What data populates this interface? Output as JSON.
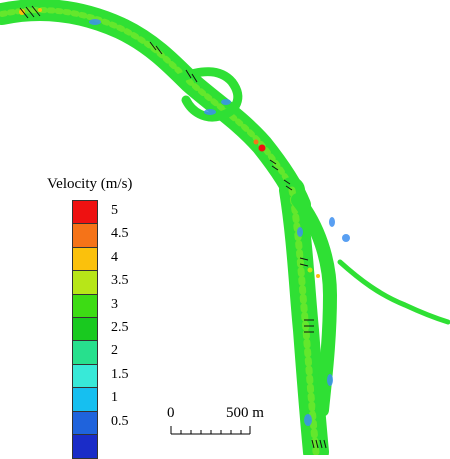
{
  "legend": {
    "title": "Velocity (m/s)",
    "classes": [
      {
        "label": "5",
        "color": "#ee1111"
      },
      {
        "label": "4.5",
        "color": "#f57318"
      },
      {
        "label": "4",
        "color": "#fbc10c"
      },
      {
        "label": "3.5",
        "color": "#b7e618"
      },
      {
        "label": "3",
        "color": "#3ddc14"
      },
      {
        "label": "2.5",
        "color": "#19c91f"
      },
      {
        "label": "2",
        "color": "#27e08d"
      },
      {
        "label": "1.5",
        "color": "#38e9d8"
      },
      {
        "label": "1",
        "color": "#16bff0"
      },
      {
        "label": "0.5",
        "color": "#1f63dc"
      },
      {
        "label": "",
        "color": "#1a2cc8"
      }
    ]
  },
  "scale_bar": {
    "start_label": "0",
    "end_label": "500 m"
  },
  "colors": {
    "flow_primary": "#2fe034",
    "flow_secondary": "#7bea2a",
    "flow_slow": "#3d8ff0",
    "flow_fast": "#ee1111",
    "vectors": "#111111"
  }
}
